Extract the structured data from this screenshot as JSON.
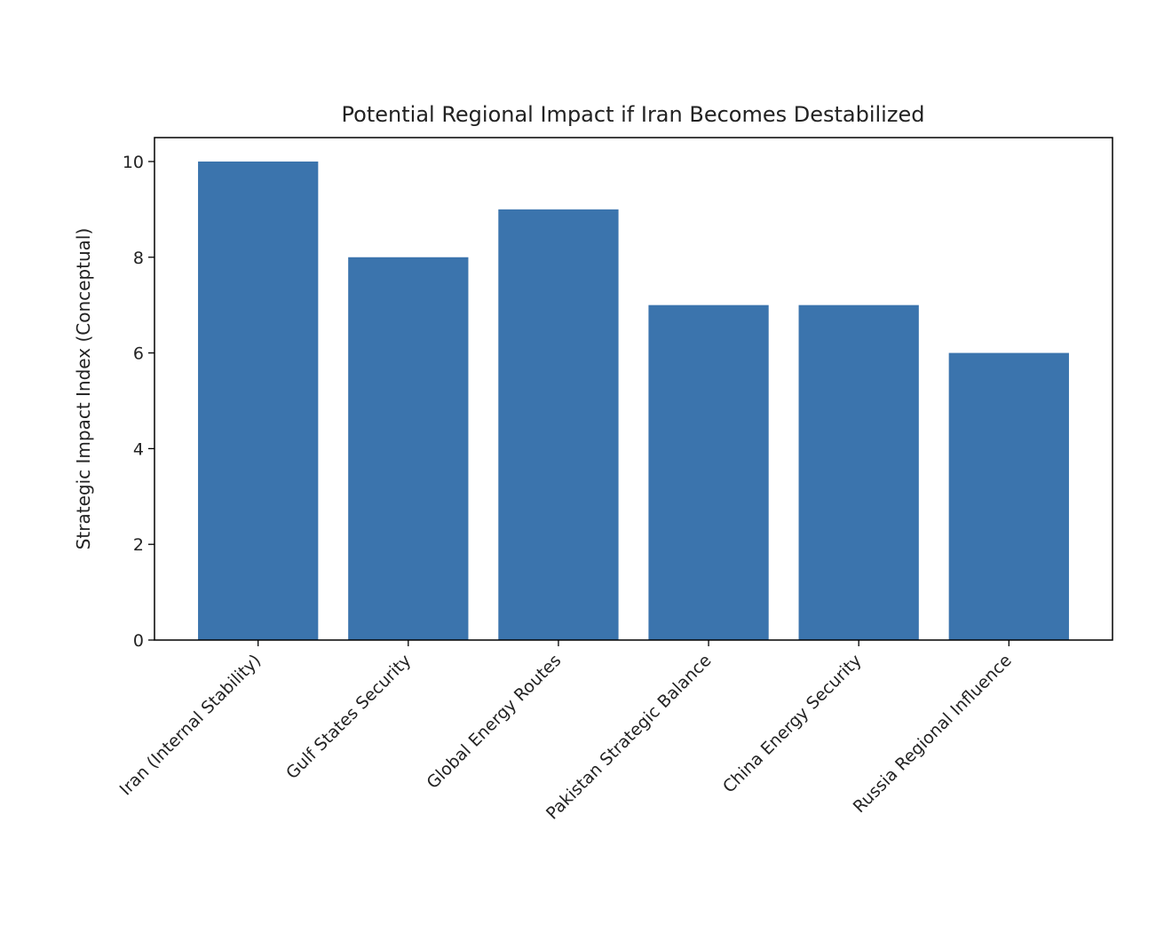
{
  "chart_data": {
    "type": "bar",
    "title": "Potential Regional Impact if Iran Becomes Destabilized",
    "xlabel": "",
    "ylabel": "Strategic Impact Index (Conceptual)",
    "categories": [
      "Iran (Internal Stability)",
      "Gulf States Security",
      "Global Energy Routes",
      "Pakistan Strategic Balance",
      "China Energy Security",
      "Russia Regional Influence"
    ],
    "values": [
      10,
      8,
      9,
      7,
      7,
      6
    ],
    "ylim": [
      0,
      10.5
    ],
    "yticks": [
      0,
      2,
      4,
      6,
      8,
      10
    ],
    "grid": false,
    "bar_color": "#3b74ad"
  }
}
